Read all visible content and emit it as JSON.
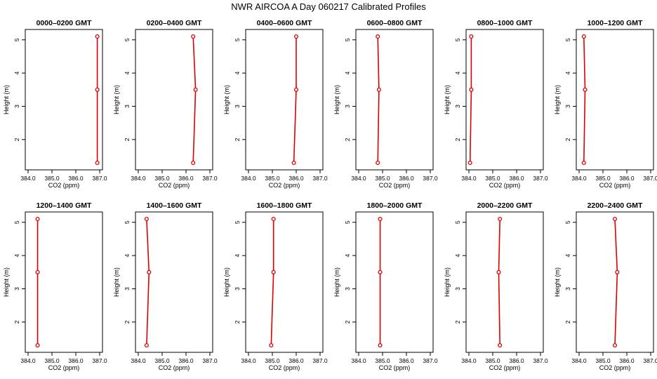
{
  "title": "NWR AIRCOA A  Day 060217  Calibrated Profiles",
  "colors": {
    "profile": "#dd0000",
    "axis": "#000000"
  },
  "chart_data": [
    {
      "type": "line",
      "title": "0000–0200 GMT",
      "xlabel": "CO2 (ppm)",
      "ylabel": "Height (m)",
      "xlim": [
        384.0,
        387.0
      ],
      "ylim": [
        1.3,
        5.1
      ],
      "xticks": [
        "384.0",
        "385.0",
        "386.0",
        "387.0"
      ],
      "yticks": [
        "2",
        "3",
        "4",
        "5"
      ],
      "series": [
        {
          "x": [
            386.9,
            386.9,
            386.9
          ],
          "y": [
            1.3,
            3.5,
            5.1
          ]
        }
      ]
    },
    {
      "type": "line",
      "title": "0200–0400 GMT",
      "xlabel": "CO2 (ppm)",
      "ylabel": "Height (m)",
      "xlim": [
        384.0,
        387.0
      ],
      "ylim": [
        1.3,
        5.1
      ],
      "xticks": [
        "384.0",
        "385.0",
        "386.0",
        "387.0"
      ],
      "yticks": [
        "2",
        "3",
        "4",
        "5"
      ],
      "series": [
        {
          "x": [
            386.3,
            386.4,
            386.3
          ],
          "y": [
            1.3,
            3.5,
            5.1
          ]
        }
      ]
    },
    {
      "type": "line",
      "title": "0400–0600 GMT",
      "xlabel": "CO2 (ppm)",
      "ylabel": "Height (m)",
      "xlim": [
        384.0,
        387.0
      ],
      "ylim": [
        1.3,
        5.1
      ],
      "xticks": [
        "384.0",
        "385.0",
        "386.0",
        "387.0"
      ],
      "yticks": [
        "2",
        "3",
        "4",
        "5"
      ],
      "series": [
        {
          "x": [
            385.9,
            386.0,
            386.0
          ],
          "y": [
            1.3,
            3.5,
            5.1
          ]
        }
      ]
    },
    {
      "type": "line",
      "title": "0600–0800 GMT",
      "xlabel": "CO2 (ppm)",
      "ylabel": "Height (m)",
      "xlim": [
        384.0,
        387.0
      ],
      "ylim": [
        1.3,
        5.1
      ],
      "xticks": [
        "384.0",
        "385.0",
        "386.0",
        "387.0"
      ],
      "yticks": [
        "2",
        "3",
        "4",
        "5"
      ],
      "series": [
        {
          "x": [
            384.8,
            384.85,
            384.8
          ],
          "y": [
            1.3,
            3.5,
            5.1
          ]
        }
      ]
    },
    {
      "type": "line",
      "title": "0800–1000 GMT",
      "xlabel": "CO2 (ppm)",
      "ylabel": "Height (m)",
      "xlim": [
        384.0,
        387.0
      ],
      "ylim": [
        1.3,
        5.1
      ],
      "xticks": [
        "384.0",
        "385.0",
        "386.0",
        "387.0"
      ],
      "yticks": [
        "2",
        "3",
        "4",
        "5"
      ],
      "series": [
        {
          "x": [
            384.05,
            384.1,
            384.1
          ],
          "y": [
            1.3,
            3.5,
            5.1
          ]
        }
      ]
    },
    {
      "type": "line",
      "title": "1000–1200 GMT",
      "xlabel": "CO2 (ppm)",
      "ylabel": "Height (m)",
      "xlim": [
        384.0,
        387.0
      ],
      "ylim": [
        1.3,
        5.1
      ],
      "xticks": [
        "384.0",
        "385.0",
        "386.0",
        "387.0"
      ],
      "yticks": [
        "2",
        "3",
        "4",
        "5"
      ],
      "series": [
        {
          "x": [
            384.2,
            384.25,
            384.2
          ],
          "y": [
            1.3,
            3.5,
            5.1
          ]
        }
      ]
    },
    {
      "type": "line",
      "title": "1200–1400 GMT",
      "xlabel": "CO2 (ppm)",
      "ylabel": "Height (m)",
      "xlim": [
        384.0,
        387.0
      ],
      "ylim": [
        1.3,
        5.1
      ],
      "xticks": [
        "384.0",
        "385.0",
        "386.0",
        "387.0"
      ],
      "yticks": [
        "2",
        "3",
        "4",
        "5"
      ],
      "series": [
        {
          "x": [
            384.4,
            384.4,
            384.4
          ],
          "y": [
            1.3,
            3.5,
            5.1
          ]
        }
      ]
    },
    {
      "type": "line",
      "title": "1400–1600 GMT",
      "xlabel": "CO2 (ppm)",
      "ylabel": "Height (m)",
      "xlim": [
        384.0,
        387.0
      ],
      "ylim": [
        1.3,
        5.1
      ],
      "xticks": [
        "384.0",
        "385.0",
        "386.0",
        "387.0"
      ],
      "yticks": [
        "2",
        "3",
        "4",
        "5"
      ],
      "series": [
        {
          "x": [
            384.35,
            384.45,
            384.35
          ],
          "y": [
            1.3,
            3.5,
            5.1
          ]
        }
      ]
    },
    {
      "type": "line",
      "title": "1600–1800 GMT",
      "xlabel": "CO2 (ppm)",
      "ylabel": "Height (m)",
      "xlim": [
        384.0,
        387.0
      ],
      "ylim": [
        1.3,
        5.1
      ],
      "xticks": [
        "384.0",
        "385.0",
        "386.0",
        "387.0"
      ],
      "yticks": [
        "2",
        "3",
        "4",
        "5"
      ],
      "series": [
        {
          "x": [
            384.95,
            385.05,
            385.05
          ],
          "y": [
            1.3,
            3.5,
            5.1
          ]
        }
      ]
    },
    {
      "type": "line",
      "title": "1800–2000 GMT",
      "xlabel": "CO2 (ppm)",
      "ylabel": "Height (m)",
      "xlim": [
        384.0,
        387.0
      ],
      "ylim": [
        1.3,
        5.1
      ],
      "xticks": [
        "384.0",
        "385.0",
        "386.0",
        "387.0"
      ],
      "yticks": [
        "2",
        "3",
        "4",
        "5"
      ],
      "series": [
        {
          "x": [
            384.9,
            384.9,
            384.9
          ],
          "y": [
            1.3,
            3.5,
            5.1
          ]
        }
      ]
    },
    {
      "type": "line",
      "title": "2000–2200 GMT",
      "xlabel": "CO2 (ppm)",
      "ylabel": "Height (m)",
      "xlim": [
        384.0,
        387.0
      ],
      "ylim": [
        1.3,
        5.1
      ],
      "xticks": [
        "384.0",
        "385.0",
        "386.0",
        "387.0"
      ],
      "yticks": [
        "2",
        "3",
        "4",
        "5"
      ],
      "series": [
        {
          "x": [
            385.3,
            385.25,
            385.3
          ],
          "y": [
            1.3,
            3.5,
            5.1
          ]
        }
      ]
    },
    {
      "type": "line",
      "title": "2200–2400 GMT",
      "xlabel": "CO2 (ppm)",
      "ylabel": "Height (m)",
      "xlim": [
        384.0,
        387.0
      ],
      "ylim": [
        1.3,
        5.1
      ],
      "xticks": [
        "384.0",
        "385.0",
        "386.0",
        "387.0"
      ],
      "yticks": [
        "2",
        "3",
        "4",
        "5"
      ],
      "series": [
        {
          "x": [
            385.5,
            385.6,
            385.5
          ],
          "y": [
            1.3,
            3.5,
            5.1
          ]
        }
      ]
    }
  ]
}
